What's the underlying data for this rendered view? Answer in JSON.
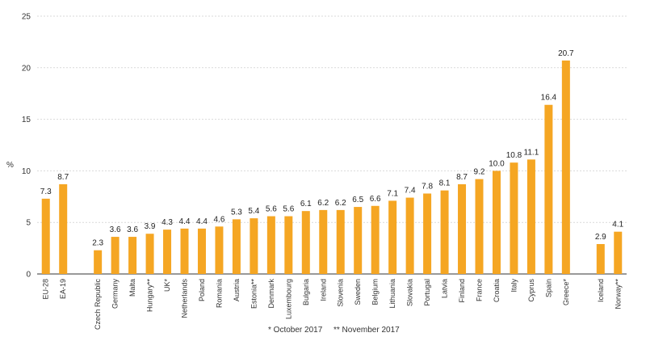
{
  "chart_data": {
    "type": "bar",
    "title": "",
    "xlabel": "",
    "ylabel": "%",
    "ylim": [
      0,
      25
    ],
    "yticks": [
      0,
      5,
      10,
      15,
      20,
      25
    ],
    "grid": "horizontal",
    "bar_color": "#F5A623",
    "categories": [
      "EU-28",
      "EA-19",
      "",
      "Czech Republic",
      "Germany",
      "Malta",
      "Hungary**",
      "UK*",
      "Netherlands",
      "Poland",
      "Romania",
      "Austria",
      "Estonia**",
      "Denmark",
      "Luxembourg",
      "Bulgaria",
      "Ireland",
      "Slovenia",
      "Sweden",
      "Belgium",
      "Lithuania",
      "Slovakia",
      "Portugal",
      "Latvia",
      "Finland",
      "France",
      "Croatia",
      "Italy",
      "Cyprus",
      "Spain",
      "Greece*",
      "",
      "Iceland",
      "Norway**"
    ],
    "values": [
      7.3,
      8.7,
      null,
      2.3,
      3.6,
      3.6,
      3.9,
      4.3,
      4.4,
      4.4,
      4.6,
      5.3,
      5.4,
      5.6,
      5.6,
      6.1,
      6.2,
      6.2,
      6.5,
      6.6,
      7.1,
      7.4,
      7.8,
      8.1,
      8.7,
      9.2,
      10.0,
      10.8,
      11.1,
      16.4,
      20.7,
      null,
      2.9,
      4.1
    ],
    "value_labels": [
      "7.3",
      "8.7",
      "",
      "2.3",
      "3.6",
      "3.6",
      "3.9",
      "4.3",
      "4.4",
      "4.4",
      "4.6",
      "5.3",
      "5.4",
      "5.6",
      "5.6",
      "6.1",
      "6.2",
      "6.2",
      "6.5",
      "6.6",
      "7.1",
      "7.4",
      "7.8",
      "8.1",
      "8.7",
      "9.2",
      "10.0",
      "10.8",
      "11.1",
      "16.4",
      "20.7",
      "",
      "2.9",
      "4.1"
    ],
    "notes": [
      "* October 2017",
      "** November 2017"
    ]
  }
}
